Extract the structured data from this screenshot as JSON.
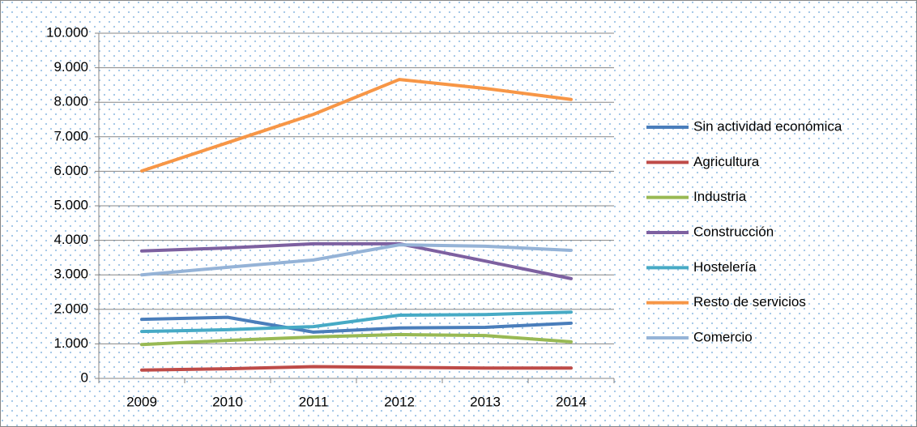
{
  "chart_data": {
    "type": "line",
    "categories": [
      "2009",
      "2010",
      "2011",
      "2012",
      "2013",
      "2014"
    ],
    "series": [
      {
        "name": "Sin actividad económica",
        "color": "#4a7ebb",
        "values": [
          1710,
          1770,
          1340,
          1460,
          1480,
          1600
        ]
      },
      {
        "name": "Agricultura",
        "color": "#be4b48",
        "values": [
          240,
          280,
          340,
          320,
          300,
          300
        ]
      },
      {
        "name": "Industria",
        "color": "#98b954",
        "values": [
          980,
          1100,
          1200,
          1270,
          1240,
          1060
        ]
      },
      {
        "name": "Construcción",
        "color": "#7d60a0",
        "values": [
          3690,
          3780,
          3900,
          3900,
          3400,
          2890
        ]
      },
      {
        "name": "Hostelería",
        "color": "#46aac5",
        "values": [
          1360,
          1410,
          1500,
          1830,
          1850,
          1920
        ]
      },
      {
        "name": "Resto de servicios",
        "color": "#f79646",
        "values": [
          6010,
          6830,
          7650,
          8660,
          8400,
          8080
        ]
      },
      {
        "name": "Comercio",
        "color": "#95b3d7",
        "values": [
          3000,
          3220,
          3430,
          3870,
          3830,
          3710
        ]
      }
    ],
    "ylim": [
      0,
      10000
    ],
    "yticks": [
      0,
      {
        "value": 1000,
        "label": "1.000"
      },
      {
        "value": 2000,
        "label": "2.000"
      },
      {
        "value": 3000,
        "label": "3.000"
      },
      {
        "value": 4000,
        "label": "4.000"
      },
      {
        "value": 5000,
        "label": "5.000"
      },
      {
        "value": 6000,
        "label": "6.000"
      },
      {
        "value": 7000,
        "label": "7.000"
      },
      {
        "value": 8000,
        "label": "8.000"
      },
      {
        "value": 9000,
        "label": "9.000"
      },
      {
        "value": 10000,
        "label": "10.000"
      }
    ],
    "grid": true,
    "legend": "right"
  }
}
